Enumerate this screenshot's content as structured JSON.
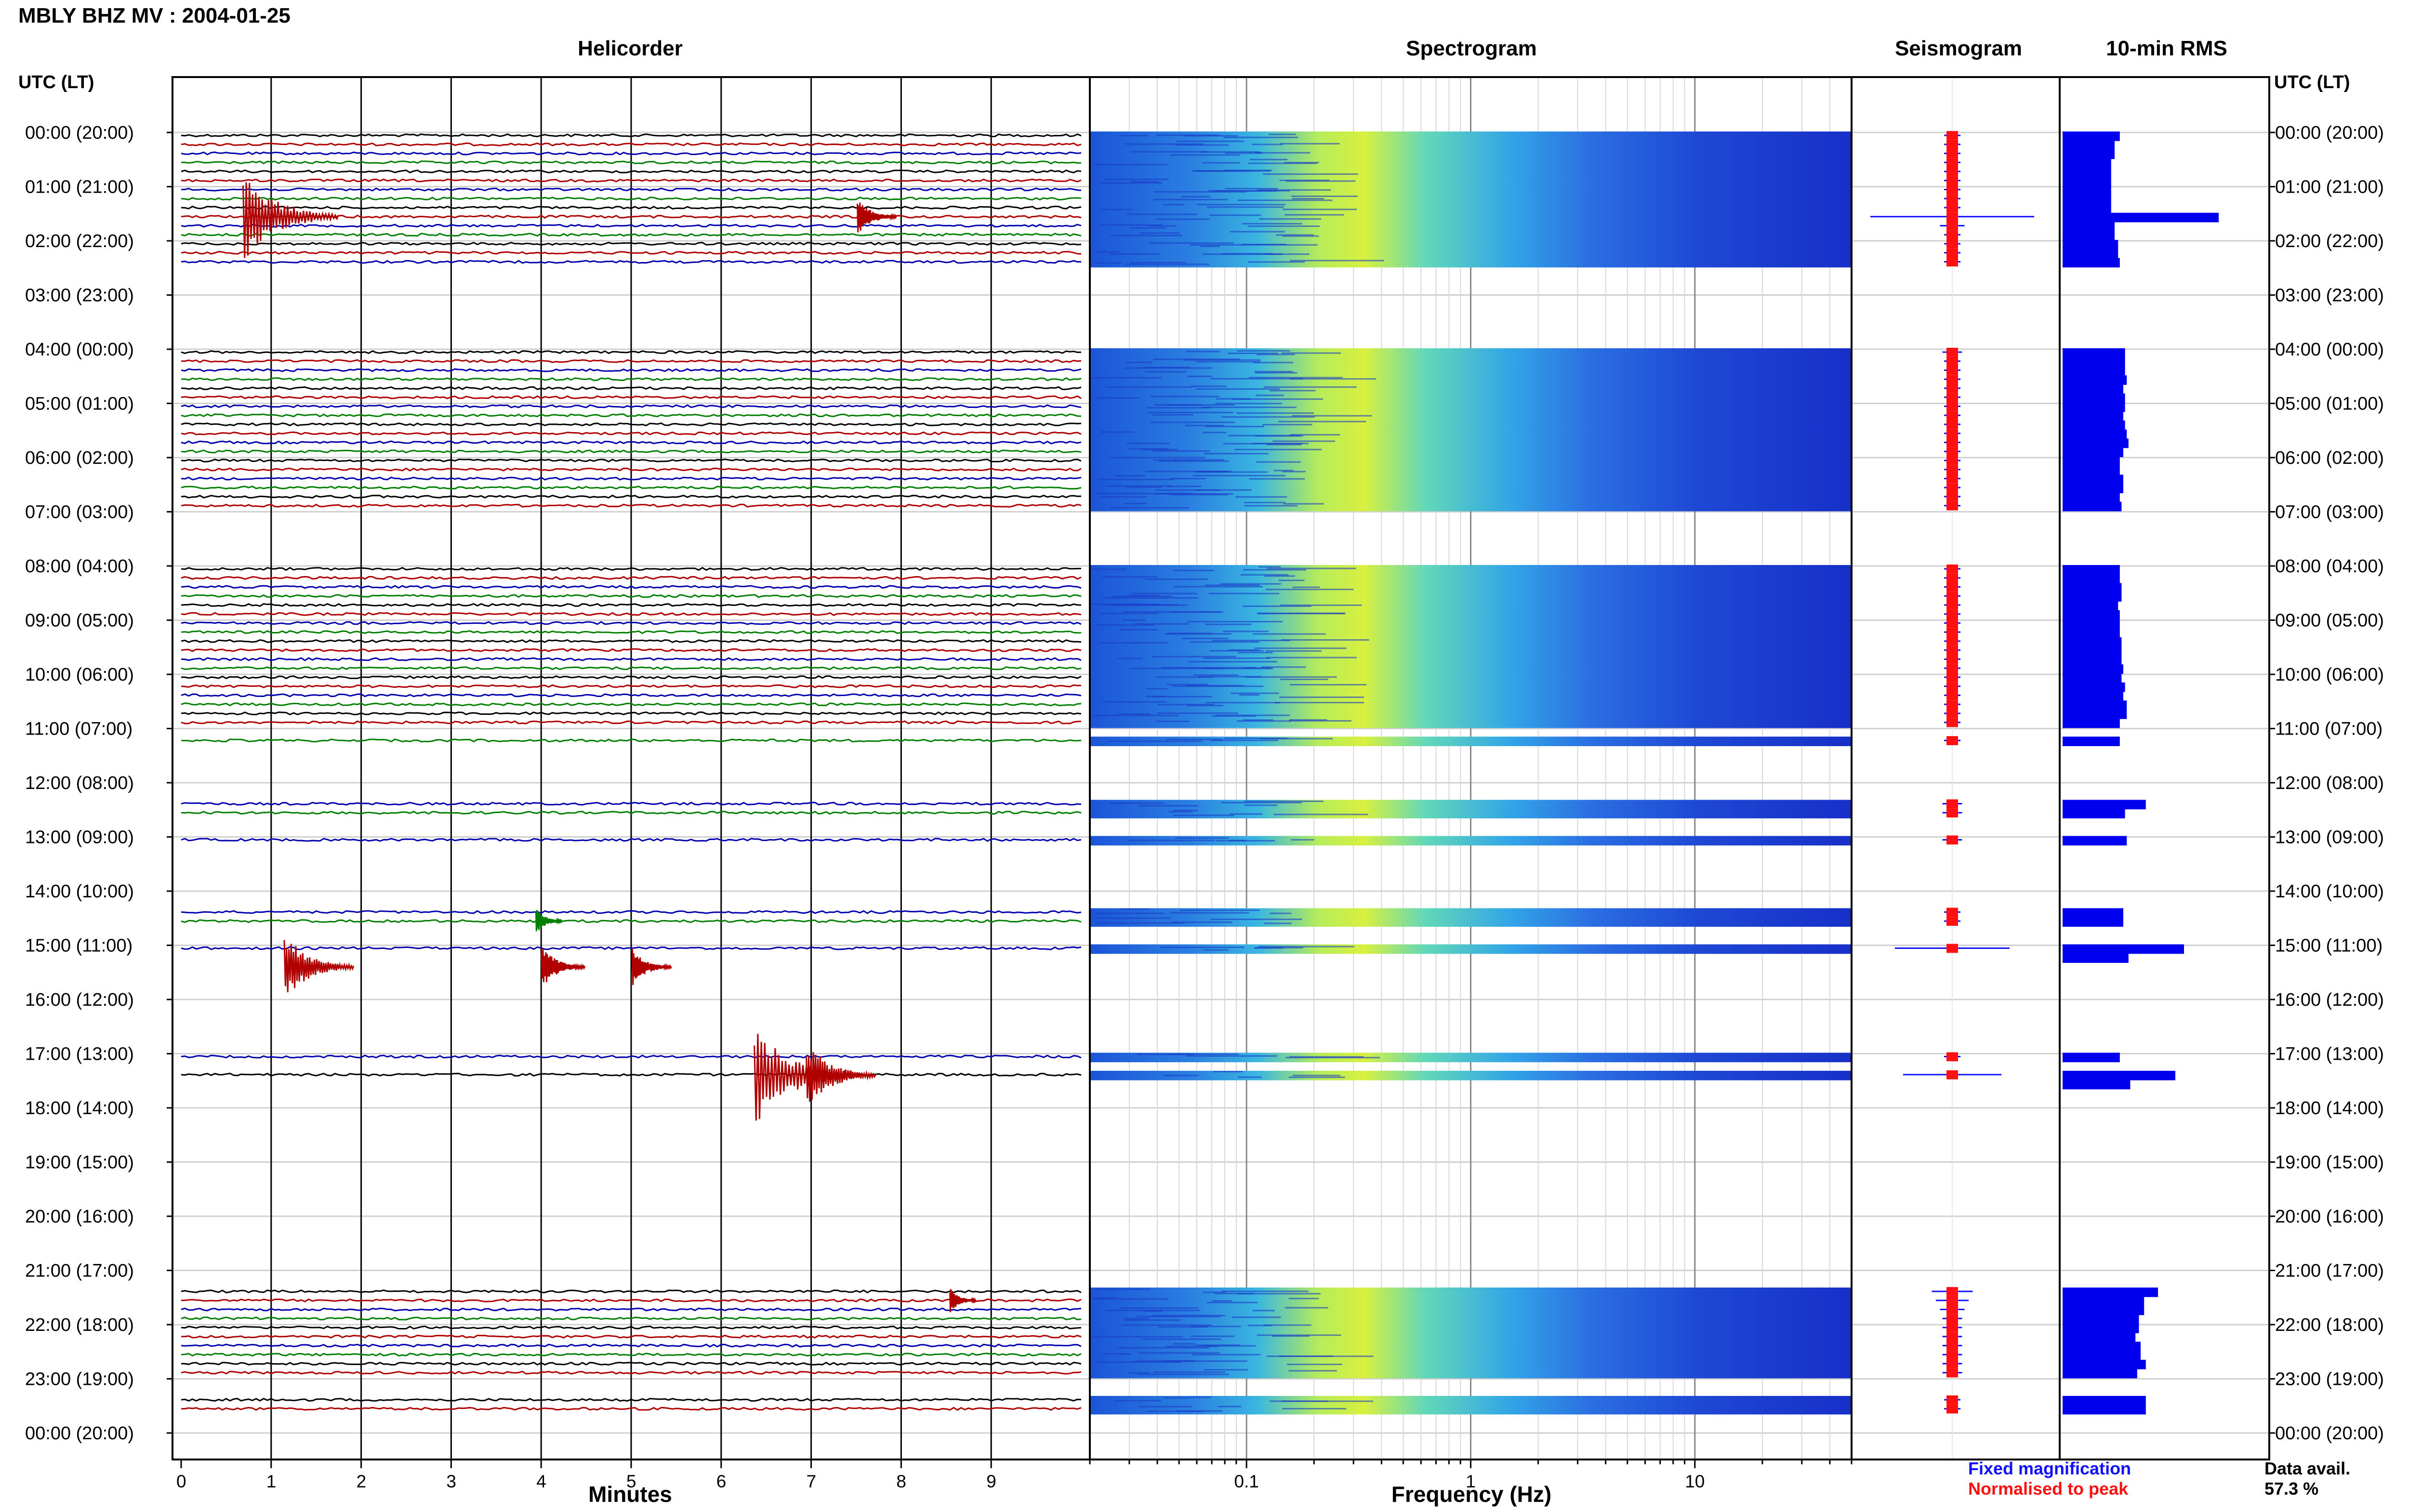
{
  "header": {
    "station_title": "MBLY BHZ MV : 2004-01-25"
  },
  "panels": {
    "helicorder": "Helicorder",
    "spectrogram": "Spectrogram",
    "seismogram": "Seismogram",
    "rms": "10-min RMS"
  },
  "time_axis": {
    "label_left": "UTC (LT)",
    "label_right": "UTC (LT)",
    "hours": [
      "00:00 (20:00)",
      "01:00 (21:00)",
      "02:00 (22:00)",
      "03:00 (23:00)",
      "04:00 (00:00)",
      "05:00 (01:00)",
      "06:00 (02:00)",
      "07:00 (03:00)",
      "08:00 (04:00)",
      "09:00 (05:00)",
      "10:00 (06:00)",
      "11:00 (07:00)",
      "12:00 (08:00)",
      "13:00 (09:00)",
      "14:00 (10:00)",
      "15:00 (11:00)",
      "16:00 (12:00)",
      "17:00 (13:00)",
      "18:00 (14:00)",
      "19:00 (15:00)",
      "20:00 (16:00)",
      "21:00 (17:00)",
      "22:00 (18:00)",
      "23:00 (19:00)",
      "00:00 (20:00)"
    ]
  },
  "chart_data": [
    {
      "type": "line",
      "title": "Helicorder",
      "xlabel": "Minutes",
      "x_ticks": [
        "0",
        "1",
        "2",
        "3",
        "4",
        "5",
        "6",
        "7",
        "8",
        "9"
      ],
      "xlim": [
        0,
        10
      ],
      "trace_colors": [
        "#000000",
        "#b00000",
        "#0000b0",
        "#008000"
      ],
      "segments_10min": [
        1,
        1,
        1,
        1,
        1,
        1,
        1,
        1,
        1,
        1,
        1,
        1,
        1,
        1,
        1,
        0,
        0,
        0,
        0,
        0,
        0,
        0,
        0,
        0,
        1,
        1,
        1,
        1,
        1,
        1,
        1,
        1,
        1,
        1,
        1,
        1,
        1,
        1,
        1,
        1,
        1,
        1,
        0,
        0,
        0,
        0,
        0,
        0,
        1,
        1,
        1,
        1,
        1,
        1,
        1,
        1,
        1,
        1,
        1,
        1,
        1,
        1,
        1,
        1,
        1,
        1,
        0,
        1,
        0,
        0,
        0,
        0,
        0,
        0,
        1,
        1,
        0,
        0,
        1,
        0,
        0,
        0,
        0,
        0,
        0,
        0,
        1,
        1,
        0,
        0,
        1,
        0,
        0,
        0,
        0,
        0,
        0,
        0,
        0,
        0,
        0,
        0,
        1,
        0,
        1,
        0,
        0,
        0,
        0,
        0,
        0,
        0,
        0,
        0,
        0,
        0,
        0,
        0,
        0,
        0,
        0,
        0,
        0,
        0,
        0,
        0,
        0,
        0,
        1,
        1,
        1,
        1,
        1,
        1,
        1,
        1,
        1,
        1,
        0,
        0,
        1,
        1,
        0,
        0
      ],
      "events": [
        {
          "hour": 1,
          "minute": 0.9,
          "amplitude": 2.2
        },
        {
          "hour": 1,
          "minute": 7.6,
          "amplitude": 0.9
        },
        {
          "hour": 14,
          "minute": 4.0,
          "amplitude": 0.6
        },
        {
          "hour": 15,
          "minute": 1.3,
          "amplitude": 1.6
        },
        {
          "hour": 15,
          "minute": 4.1,
          "amplitude": 1.0
        },
        {
          "hour": 15,
          "minute": 5.1,
          "amplitude": 0.9
        },
        {
          "hour": 17,
          "minute": 6.6,
          "amplitude": 2.4
        },
        {
          "hour": 17,
          "minute": 7.1,
          "amplitude": 1.6
        },
        {
          "hour": 21,
          "minute": 8.6,
          "amplitude": 0.6
        }
      ]
    },
    {
      "type": "heatmap",
      "title": "Spectrogram",
      "xlabel": "Frequency (Hz)",
      "x_scale": "log",
      "xlim": [
        0.02,
        50
      ],
      "x_ticks": [
        "0.1",
        "1",
        "10"
      ],
      "colormap": [
        "#1a2fd6",
        "#2f6ee8",
        "#35b8e6",
        "#7fe6b0",
        "#e8f03a"
      ]
    },
    {
      "type": "line",
      "title": "Seismogram",
      "series": [
        {
          "name": "Fixed magnification",
          "color": "#1010ff"
        },
        {
          "name": "Normalised to peak",
          "color": "#ff1010"
        }
      ],
      "peak_amplitudes_10min": [
        0.1,
        0.1,
        0.1,
        0.1,
        0.1,
        0.1,
        0.1,
        0.1,
        0.1,
        1.0,
        0.15,
        0.1,
        0.1,
        0.1,
        0.1,
        0,
        0,
        0,
        0,
        0,
        0,
        0,
        0,
        0,
        0.12,
        0.1,
        0.1,
        0.1,
        0.1,
        0.1,
        0.1,
        0.1,
        0.1,
        0.1,
        0.1,
        0.1,
        0.1,
        0.1,
        0.1,
        0.1,
        0.1,
        0.1,
        0,
        0,
        0,
        0,
        0,
        0,
        0.1,
        0.1,
        0.1,
        0.1,
        0.1,
        0.1,
        0.1,
        0.1,
        0.1,
        0.1,
        0.1,
        0.1,
        0.1,
        0.1,
        0.1,
        0.1,
        0.1,
        0.1,
        0,
        0.1,
        0,
        0,
        0,
        0,
        0,
        0,
        0.12,
        0.12,
        0,
        0,
        0.12,
        0,
        0,
        0,
        0,
        0,
        0,
        0,
        0.1,
        0.1,
        0,
        0,
        0.7,
        0,
        0,
        0,
        0,
        0,
        0,
        0,
        0,
        0,
        0,
        0,
        0.1,
        0,
        0.6,
        0,
        0,
        0,
        0,
        0,
        0,
        0,
        0,
        0,
        0,
        0,
        0,
        0,
        0,
        0,
        0,
        0,
        0,
        0,
        0,
        0,
        0,
        0,
        0.25,
        0.2,
        0.15,
        0.12,
        0.12,
        0.12,
        0.12,
        0.12,
        0.12,
        0.12,
        0,
        0,
        0.1,
        0.1,
        0,
        0
      ]
    },
    {
      "type": "bar",
      "title": "10-min RMS",
      "orientation": "horizontal",
      "color": "#0000ee",
      "values_10min": [
        0.33,
        0.3,
        0.3,
        0.28,
        0.28,
        0.28,
        0.28,
        0.28,
        0.28,
        0.9,
        0.3,
        0.3,
        0.32,
        0.32,
        0.33,
        0,
        0,
        0,
        0,
        0,
        0,
        0,
        0,
        0,
        0.36,
        0.36,
        0.36,
        0.37,
        0.35,
        0.36,
        0.36,
        0.35,
        0.36,
        0.37,
        0.38,
        0.35,
        0.33,
        0.33,
        0.35,
        0.35,
        0.33,
        0.34,
        0,
        0,
        0,
        0,
        0,
        0,
        0.33,
        0.33,
        0.34,
        0.34,
        0.32,
        0.33,
        0.33,
        0.33,
        0.34,
        0.34,
        0.34,
        0.35,
        0.34,
        0.36,
        0.35,
        0.37,
        0.37,
        0.33,
        0,
        0.33,
        0,
        0,
        0,
        0,
        0,
        0,
        0.48,
        0.36,
        0,
        0,
        0.37,
        0,
        0,
        0,
        0,
        0,
        0,
        0,
        0.35,
        0.35,
        0,
        0,
        0.7,
        0.38,
        0,
        0,
        0,
        0,
        0,
        0,
        0,
        0,
        0,
        0,
        0.33,
        0,
        0.65,
        0.39,
        0,
        0,
        0,
        0,
        0,
        0,
        0,
        0,
        0,
        0,
        0,
        0,
        0,
        0,
        0,
        0,
        0,
        0,
        0,
        0,
        0,
        0,
        0.55,
        0.47,
        0.47,
        0.44,
        0.44,
        0.42,
        0.45,
        0.45,
        0.48,
        0.43,
        0,
        0,
        0.48,
        0.48,
        0,
        0
      ]
    }
  ],
  "legend": {
    "fixed": "Fixed magnification",
    "normalised": "Normalised to peak",
    "fixed_color": "#1010ff",
    "normalised_color": "#ff1010"
  },
  "availability": {
    "label": "Data avail.",
    "value": "57.3 %"
  }
}
